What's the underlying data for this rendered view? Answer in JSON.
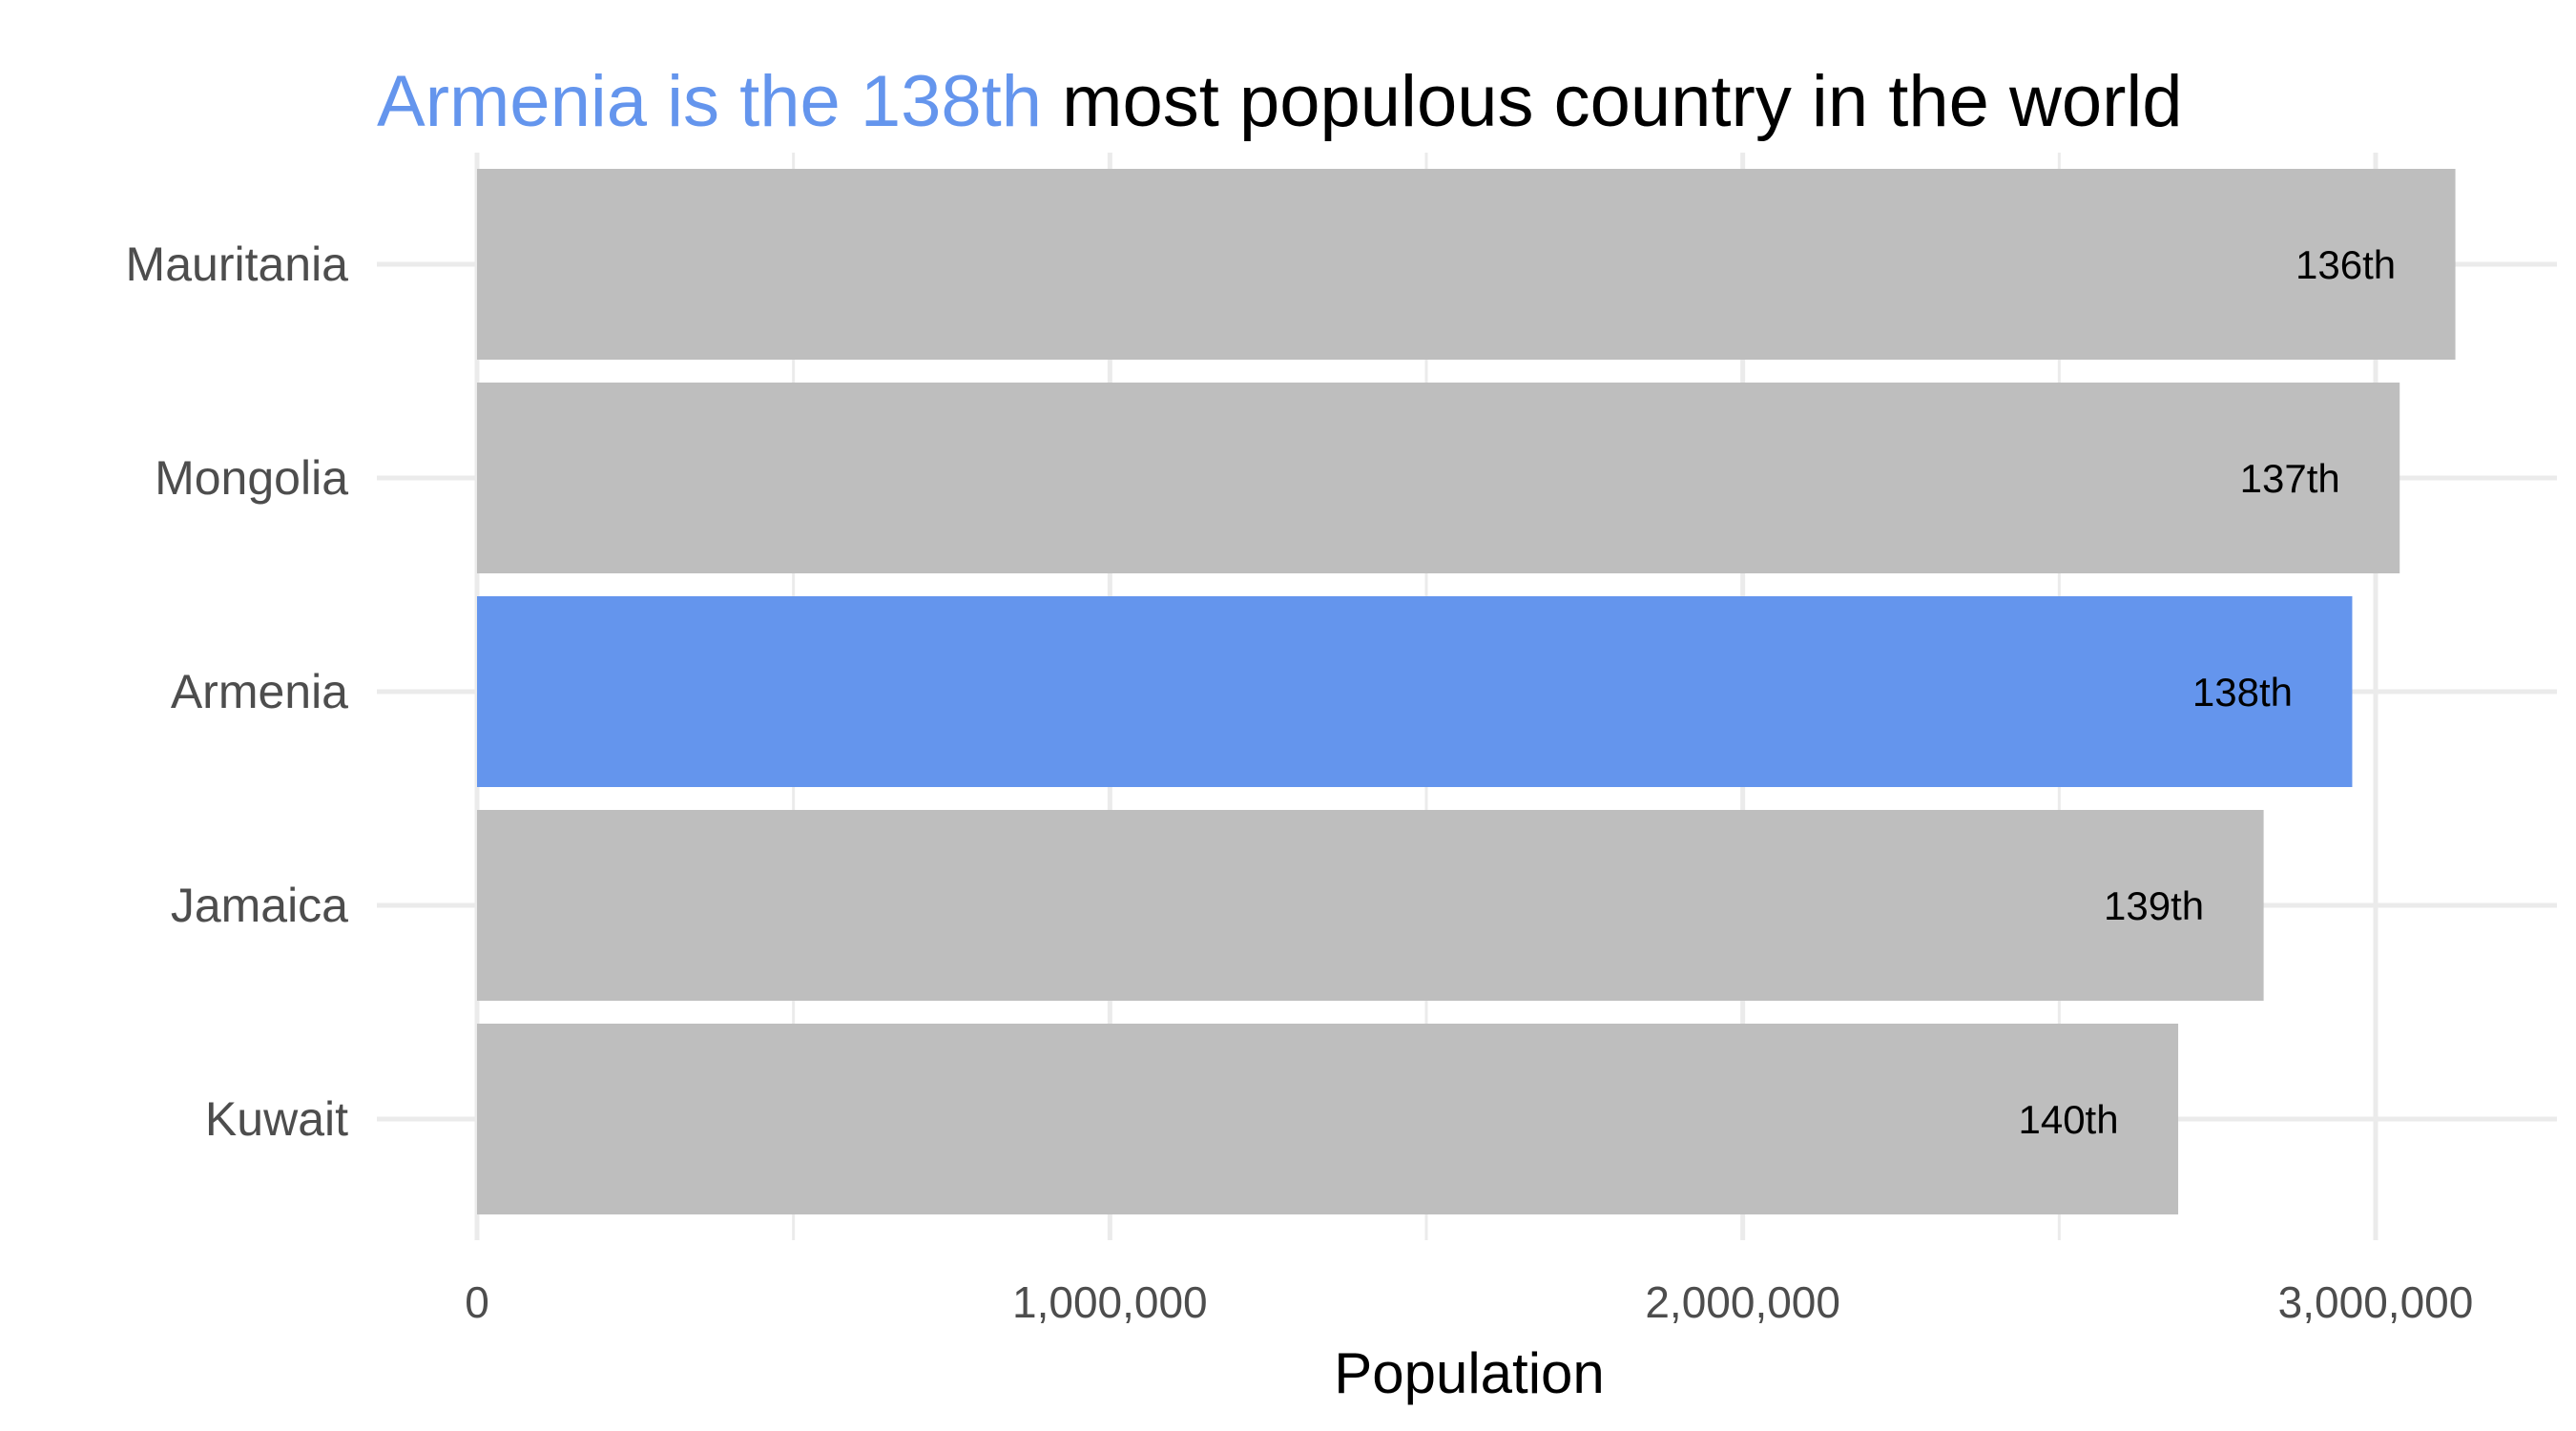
{
  "chart_data": {
    "type": "bar",
    "orientation": "horizontal",
    "title_parts": [
      {
        "text": "Armenia is the 138th",
        "color": "#6495ed"
      },
      {
        "text": " most populous country in the world",
        "color": "#000000"
      }
    ],
    "xlabel": "Population",
    "ylabel": "",
    "categories": [
      "Mauritania",
      "Mongolia",
      "Armenia",
      "Jamaica",
      "Kuwait"
    ],
    "values": [
      3126000,
      3038000,
      2963000,
      2823000,
      2688000
    ],
    "labels": [
      "136th",
      "137th",
      "138th",
      "139th",
      "140th"
    ],
    "highlight": "Armenia",
    "colors": {
      "default": "#bebebe",
      "highlight": "#6495ed",
      "grid": "#ebebeb"
    },
    "xlim": [
      0,
      3250000
    ],
    "xticks": [
      0,
      1000000,
      2000000,
      3000000
    ],
    "xtick_labels": [
      "0",
      "1,000,000",
      "2,000,000",
      "3,000,000"
    ],
    "grid": true,
    "legend": "none"
  }
}
